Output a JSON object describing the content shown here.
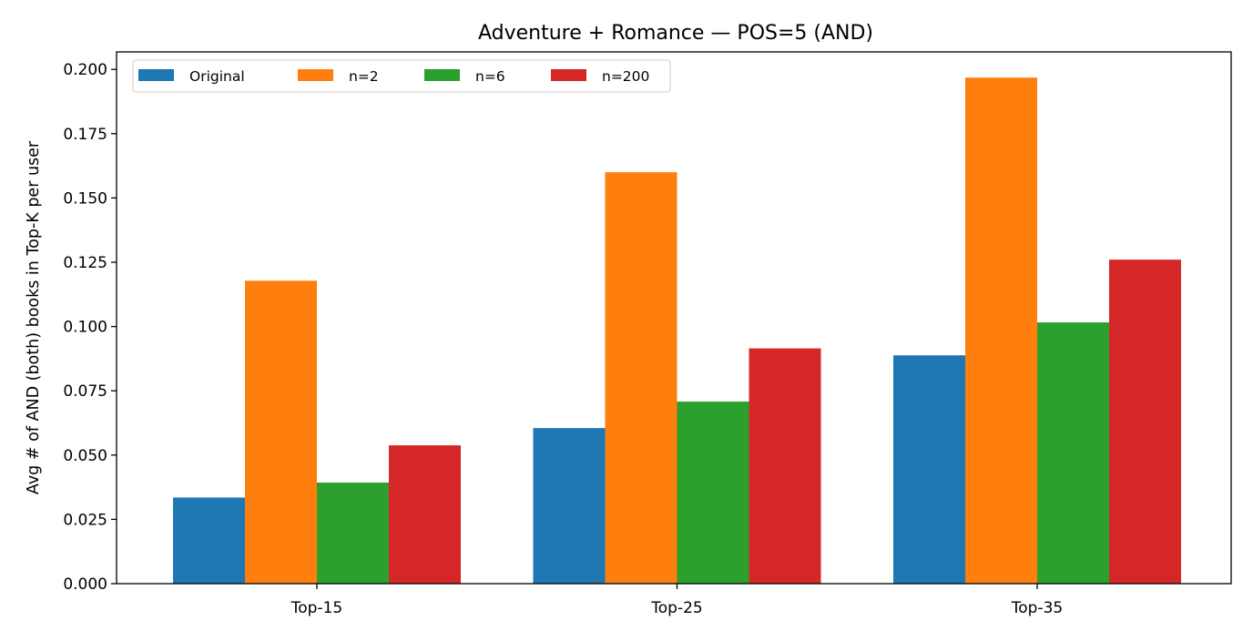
{
  "chart_data": {
    "type": "bar",
    "title": "Adventure + Romance — POS=5 (AND)",
    "xlabel": "",
    "ylabel": "Avg # of AND (both) books in Top-K per user",
    "categories": [
      "Top-15",
      "Top-25",
      "Top-35"
    ],
    "series": [
      {
        "name": "Original",
        "color": "#1f77b4",
        "values": [
          0.0335,
          0.0605,
          0.0888
        ]
      },
      {
        "name": "n=2",
        "color": "#ff7f0e",
        "values": [
          0.1178,
          0.16,
          0.1968
        ]
      },
      {
        "name": "n=6",
        "color": "#2ca02c",
        "values": [
          0.0393,
          0.0708,
          0.1016
        ]
      },
      {
        "name": "n=200",
        "color": "#d62728",
        "values": [
          0.0538,
          0.0915,
          0.126
        ]
      }
    ],
    "ylim": [
      0,
      0.2068
    ],
    "yticks": [
      "0.000",
      "0.025",
      "0.050",
      "0.075",
      "0.100",
      "0.125",
      "0.150",
      "0.175",
      "0.200"
    ],
    "ytick_values": [
      0,
      0.025,
      0.05,
      0.075,
      0.1,
      0.125,
      0.15,
      0.175,
      0.2
    ],
    "legend": "top-left",
    "grid": false
  }
}
